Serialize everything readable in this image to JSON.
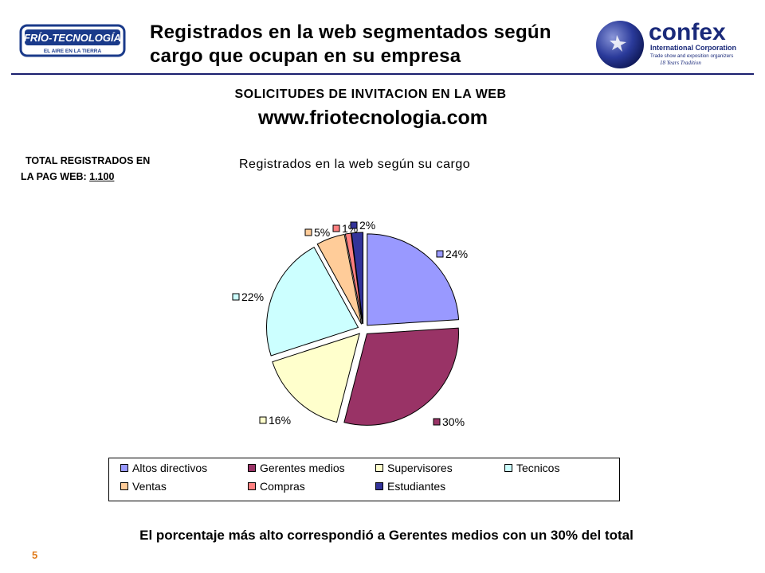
{
  "header": {
    "title": "Registrados en la web segmentados según cargo que ocupan en su empresa",
    "logo_left": {
      "name": "FRÍO-TECNOLOGÍA",
      "tagline": "EL AIRE EN LA TIERRA"
    },
    "logo_right": {
      "name": "confex",
      "line1": "International Corporation",
      "line2": "Trade show and exposition organizers",
      "line3": "18 Years Tradition"
    }
  },
  "subtitle": "SOLICITUDES DE INVITACION EN LA WEB",
  "website": "www.friotecnologia.com",
  "total": {
    "label_line1": "TOTAL REGISTRADOS EN",
    "label_line2": "LA PAG WEB:",
    "value": "1.100"
  },
  "chart_data": {
    "type": "pie",
    "title": "Registrados en la web según su cargo",
    "categories": [
      "Altos directivos",
      "Gerentes medios",
      "Supervisores",
      "Tecnicos",
      "Ventas",
      "Compras",
      "Estudiantes"
    ],
    "values": [
      24,
      30,
      16,
      22,
      5,
      1,
      2
    ],
    "labels": [
      "24%",
      "30%",
      "16%",
      "22%",
      "5%",
      "1%",
      "2%"
    ],
    "colors": [
      "#9999ff",
      "#993366",
      "#ffffcc",
      "#ccffff",
      "#ffcc99",
      "#ff8080",
      "#333399"
    ],
    "exploded": true,
    "legend_position": "bottom"
  },
  "footnote": "El porcentaje más alto correspondió a Gerentes medios con un 30% del total",
  "page_number": "5"
}
